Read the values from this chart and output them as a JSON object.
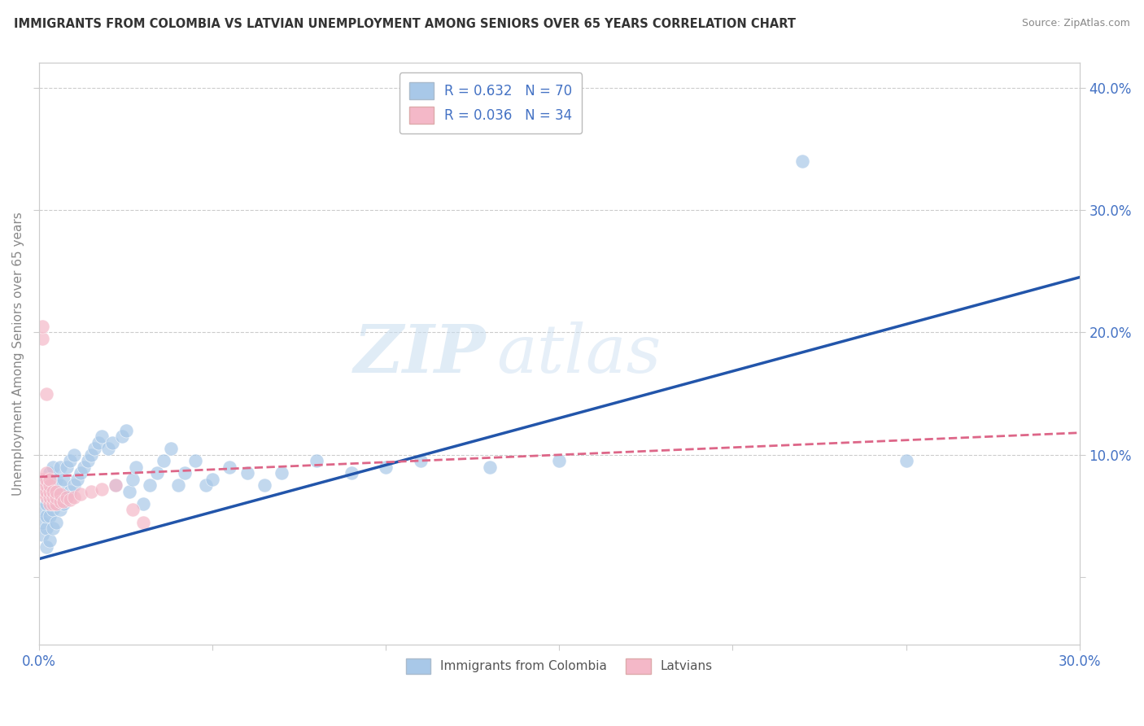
{
  "title": "IMMIGRANTS FROM COLOMBIA VS LATVIAN UNEMPLOYMENT AMONG SENIORS OVER 65 YEARS CORRELATION CHART",
  "source": "Source: ZipAtlas.com",
  "ylabel_label": "Unemployment Among Seniors over 65 years",
  "legend_entry1": "R = 0.632   N = 70",
  "legend_entry2": "R = 0.036   N = 34",
  "legend_label1": "Immigrants from Colombia",
  "legend_label2": "Latvians",
  "blue_color": "#a8c8e8",
  "pink_color": "#f4b8c8",
  "blue_line_color": "#2255aa",
  "pink_line_color": "#dd6688",
  "xlim": [
    0.0,
    0.3
  ],
  "ylim": [
    -0.055,
    0.42
  ],
  "blue_scatter_x": [
    0.001,
    0.001,
    0.001,
    0.002,
    0.002,
    0.002,
    0.002,
    0.002,
    0.002,
    0.003,
    0.003,
    0.003,
    0.003,
    0.003,
    0.004,
    0.004,
    0.004,
    0.004,
    0.005,
    0.005,
    0.005,
    0.006,
    0.006,
    0.006,
    0.007,
    0.007,
    0.008,
    0.008,
    0.009,
    0.009,
    0.01,
    0.01,
    0.011,
    0.012,
    0.013,
    0.014,
    0.015,
    0.016,
    0.017,
    0.018,
    0.02,
    0.021,
    0.022,
    0.024,
    0.025,
    0.026,
    0.027,
    0.028,
    0.03,
    0.032,
    0.034,
    0.036,
    0.038,
    0.04,
    0.042,
    0.045,
    0.048,
    0.05,
    0.055,
    0.06,
    0.065,
    0.07,
    0.08,
    0.09,
    0.1,
    0.11,
    0.13,
    0.15,
    0.22,
    0.25
  ],
  "blue_scatter_y": [
    0.035,
    0.045,
    0.055,
    0.025,
    0.04,
    0.05,
    0.06,
    0.07,
    0.08,
    0.03,
    0.05,
    0.065,
    0.075,
    0.085,
    0.04,
    0.055,
    0.07,
    0.09,
    0.045,
    0.065,
    0.08,
    0.055,
    0.075,
    0.09,
    0.06,
    0.08,
    0.065,
    0.09,
    0.07,
    0.095,
    0.075,
    0.1,
    0.08,
    0.085,
    0.09,
    0.095,
    0.1,
    0.105,
    0.11,
    0.115,
    0.105,
    0.11,
    0.075,
    0.115,
    0.12,
    0.07,
    0.08,
    0.09,
    0.06,
    0.075,
    0.085,
    0.095,
    0.105,
    0.075,
    0.085,
    0.095,
    0.075,
    0.08,
    0.09,
    0.085,
    0.075,
    0.085,
    0.095,
    0.085,
    0.09,
    0.095,
    0.09,
    0.095,
    0.34,
    0.095
  ],
  "pink_scatter_x": [
    0.001,
    0.001,
    0.001,
    0.001,
    0.001,
    0.002,
    0.002,
    0.002,
    0.002,
    0.002,
    0.002,
    0.003,
    0.003,
    0.003,
    0.003,
    0.003,
    0.004,
    0.004,
    0.004,
    0.005,
    0.005,
    0.005,
    0.006,
    0.006,
    0.007,
    0.008,
    0.009,
    0.01,
    0.012,
    0.015,
    0.018,
    0.022,
    0.027,
    0.03
  ],
  "pink_scatter_y": [
    0.195,
    0.205,
    0.07,
    0.075,
    0.08,
    0.065,
    0.07,
    0.075,
    0.08,
    0.085,
    0.15,
    0.06,
    0.065,
    0.07,
    0.075,
    0.08,
    0.06,
    0.065,
    0.07,
    0.06,
    0.065,
    0.07,
    0.062,
    0.068,
    0.062,
    0.065,
    0.063,
    0.065,
    0.068,
    0.07,
    0.072,
    0.075,
    0.055,
    0.045
  ],
  "blue_line_x": [
    0.0,
    0.3
  ],
  "blue_line_y": [
    0.015,
    0.245
  ],
  "pink_line_x": [
    0.0,
    0.3
  ],
  "pink_line_y": [
    0.082,
    0.118
  ],
  "ytick_right_values": [
    0.0,
    0.1,
    0.2,
    0.3,
    0.4
  ],
  "ytick_right_labels": [
    "",
    "10.0%",
    "20.0%",
    "30.0%",
    "40.0%"
  ],
  "xtick_values": [
    0.0,
    0.3
  ],
  "xtick_labels": [
    "0.0%",
    "30.0%"
  ]
}
